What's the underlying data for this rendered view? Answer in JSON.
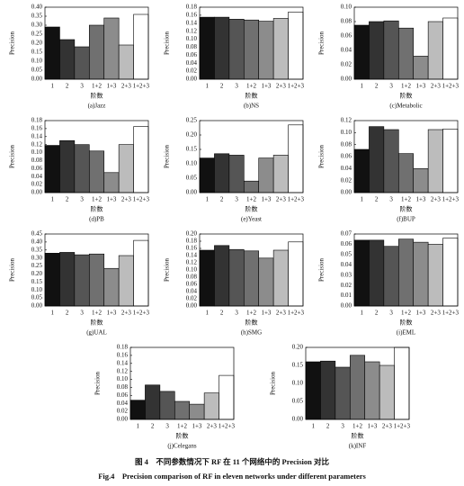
{
  "chart_data": [
    {
      "type": "bar",
      "subtitle": "(a)Jazz",
      "xlabel": "阶数",
      "ylabel": "Precision",
      "categories": [
        "1",
        "2",
        "3",
        "1+2",
        "1+3",
        "2+3",
        "1+2+3"
      ],
      "values": [
        0.29,
        0.22,
        0.18,
        0.3,
        0.34,
        0.19,
        0.36
      ],
      "colors": [
        "#111111",
        "#333333",
        "#555555",
        "#707070",
        "#8c8c8c",
        "#bcbcbc",
        "#ffffff"
      ],
      "ylim": [
        0,
        0.4
      ],
      "yticks": [
        {
          "value": 0,
          "label": "0.00"
        },
        0.05,
        {
          "value": 0.1,
          "label": "0.10"
        },
        0.15,
        {
          "value": 0.2,
          "label": "0.20"
        },
        0.25,
        {
          "value": 0.3,
          "label": "0.30"
        },
        0.35,
        {
          "value": 0.4,
          "label": "0.40"
        }
      ]
    },
    {
      "type": "bar",
      "subtitle": "(b)NS",
      "xlabel": "阶数",
      "ylabel": "Precision",
      "categories": [
        "1",
        "2",
        "3",
        "1+2",
        "1+3",
        "2+3",
        "1+2+3"
      ],
      "values": [
        0.155,
        0.155,
        0.15,
        0.148,
        0.145,
        0.152,
        0.168
      ],
      "colors": [
        "#111111",
        "#333333",
        "#555555",
        "#707070",
        "#8c8c8c",
        "#bcbcbc",
        "#ffffff"
      ],
      "ylim": [
        0,
        0.18
      ],
      "yticks": [
        {
          "value": 0,
          "label": "0.00"
        },
        0.02,
        0.04,
        0.06,
        0.08,
        {
          "value": 0.1,
          "label": "0.10"
        },
        0.12,
        0.14,
        0.16,
        0.18
      ]
    },
    {
      "type": "bar",
      "subtitle": "(c)Metabolic",
      "xlabel": "阶数",
      "ylabel": "Precision",
      "categories": [
        "1",
        "2",
        "3",
        "1+2",
        "1+3",
        "2+3",
        "1+2+3"
      ],
      "values": [
        0.075,
        0.08,
        0.081,
        0.071,
        0.032,
        0.08,
        0.085
      ],
      "colors": [
        "#111111",
        "#333333",
        "#555555",
        "#707070",
        "#8c8c8c",
        "#bcbcbc",
        "#ffffff"
      ],
      "ylim": [
        0,
        0.1
      ],
      "yticks": [
        {
          "value": 0,
          "label": "0.00"
        },
        0.02,
        0.04,
        0.06,
        0.08,
        {
          "value": 0.1,
          "label": "0.10"
        }
      ]
    },
    {
      "type": "bar",
      "subtitle": "(d)PB",
      "xlabel": "阶数",
      "ylabel": "Precision",
      "categories": [
        "1",
        "2",
        "3",
        "1+2",
        "1+3",
        "2+3",
        "1+2+3"
      ],
      "values": [
        0.118,
        0.13,
        0.12,
        0.104,
        0.05,
        0.12,
        0.165
      ],
      "colors": [
        "#111111",
        "#333333",
        "#555555",
        "#707070",
        "#8c8c8c",
        "#bcbcbc",
        "#ffffff"
      ],
      "ylim": [
        0,
        0.18
      ],
      "yticks": [
        {
          "value": 0,
          "label": "0.00"
        },
        0.02,
        0.04,
        0.06,
        0.08,
        {
          "value": 0.1,
          "label": "0.10"
        },
        0.12,
        0.14,
        0.16,
        0.18
      ]
    },
    {
      "type": "bar",
      "subtitle": "(e)Yeast",
      "xlabel": "阶数",
      "ylabel": "Precision",
      "categories": [
        "1",
        "2",
        "3",
        "1+2",
        "1+3",
        "2+3",
        "1+2+3"
      ],
      "values": [
        0.12,
        0.135,
        0.13,
        0.04,
        0.12,
        0.13,
        0.235
      ],
      "colors": [
        "#111111",
        "#333333",
        "#555555",
        "#707070",
        "#8c8c8c",
        "#bcbcbc",
        "#ffffff"
      ],
      "ylim": [
        0,
        0.25
      ],
      "yticks": [
        {
          "value": 0,
          "label": "0.00"
        },
        0.05,
        {
          "value": 0.1,
          "label": "0.10"
        },
        0.15,
        {
          "value": 0.2,
          "label": "0.20"
        },
        0.25
      ]
    },
    {
      "type": "bar",
      "subtitle": "(f)BUP",
      "xlabel": "阶数",
      "ylabel": "Precision",
      "categories": [
        "1",
        "2",
        "3",
        "1+2",
        "1+3",
        "2+3",
        "1+2+3"
      ],
      "values": [
        0.072,
        0.11,
        0.105,
        0.065,
        0.04,
        0.105,
        0.106
      ],
      "colors": [
        "#111111",
        "#333333",
        "#555555",
        "#707070",
        "#8c8c8c",
        "#bcbcbc",
        "#ffffff"
      ],
      "ylim": [
        0,
        0.12
      ],
      "yticks": [
        {
          "value": 0,
          "label": "0.00"
        },
        0.02,
        0.04,
        0.06,
        0.08,
        {
          "value": 0.1,
          "label": "0.10"
        },
        0.12
      ]
    },
    {
      "type": "bar",
      "subtitle": "(g)UAL",
      "xlabel": "阶数",
      "ylabel": "Precision",
      "categories": [
        "1",
        "2",
        "3",
        "1+2",
        "1+3",
        "2+3",
        "1+2+3"
      ],
      "values": [
        0.33,
        0.335,
        0.32,
        0.325,
        0.235,
        0.315,
        0.41
      ],
      "colors": [
        "#111111",
        "#333333",
        "#555555",
        "#707070",
        "#8c8c8c",
        "#bcbcbc",
        "#ffffff"
      ],
      "ylim": [
        0,
        0.45
      ],
      "yticks": [
        {
          "value": 0,
          "label": "0.00"
        },
        0.05,
        {
          "value": 0.1,
          "label": "0.10"
        },
        0.15,
        {
          "value": 0.2,
          "label": "0.20"
        },
        0.25,
        {
          "value": 0.3,
          "label": "0.30"
        },
        0.35,
        {
          "value": 0.4,
          "label": "0.40"
        },
        0.45
      ]
    },
    {
      "type": "bar",
      "subtitle": "(h)SMG",
      "xlabel": "阶数",
      "ylabel": "Precision",
      "categories": [
        "1",
        "2",
        "3",
        "1+2",
        "1+3",
        "2+3",
        "1+2+3"
      ],
      "values": [
        0.155,
        0.168,
        0.157,
        0.153,
        0.133,
        0.155,
        0.178
      ],
      "colors": [
        "#111111",
        "#333333",
        "#555555",
        "#707070",
        "#8c8c8c",
        "#bcbcbc",
        "#ffffff"
      ],
      "ylim": [
        0,
        0.2
      ],
      "yticks": [
        {
          "value": 0,
          "label": "0.00"
        },
        0.02,
        0.04,
        0.06,
        0.08,
        {
          "value": 0.1,
          "label": "0.10"
        },
        0.12,
        0.14,
        0.16,
        0.18,
        {
          "value": 0.2,
          "label": "0.20"
        }
      ]
    },
    {
      "type": "bar",
      "subtitle": "(i)EML",
      "xlabel": "阶数",
      "ylabel": "Precision",
      "categories": [
        "1",
        "2",
        "3",
        "1+2",
        "1+3",
        "2+3",
        "1+2+3"
      ],
      "values": [
        0.064,
        0.064,
        0.058,
        0.065,
        0.062,
        0.06,
        0.066
      ],
      "colors": [
        "#111111",
        "#333333",
        "#555555",
        "#707070",
        "#8c8c8c",
        "#bcbcbc",
        "#ffffff"
      ],
      "ylim": [
        0,
        0.07
      ],
      "yticks": [
        {
          "value": 0,
          "label": "0.00"
        },
        0.01,
        0.02,
        0.03,
        0.04,
        0.05,
        0.06,
        0.07
      ]
    },
    {
      "type": "bar",
      "subtitle": "(j)Celegans",
      "xlabel": "阶数",
      "ylabel": "Precision",
      "categories": [
        "1",
        "2",
        "3",
        "1+2",
        "1+3",
        "2+3",
        "1+2+3"
      ],
      "values": [
        0.048,
        0.086,
        0.07,
        0.045,
        0.038,
        0.066,
        0.11
      ],
      "colors": [
        "#111111",
        "#333333",
        "#555555",
        "#707070",
        "#8c8c8c",
        "#bcbcbc",
        "#ffffff"
      ],
      "ylim": [
        0,
        0.18
      ],
      "yticks": [
        {
          "value": 0,
          "label": "0.00"
        },
        0.02,
        0.04,
        0.06,
        0.08,
        {
          "value": 0.1,
          "label": "0.10"
        },
        0.12,
        0.14,
        0.16,
        0.18
      ]
    },
    {
      "type": "bar",
      "subtitle": "(k)INF",
      "xlabel": "阶数",
      "ylabel": "Precision",
      "categories": [
        "1",
        "2",
        "3",
        "1+2",
        "1+3",
        "2+3",
        "1+2+3"
      ],
      "values": [
        0.16,
        0.162,
        0.145,
        0.178,
        0.16,
        0.15,
        0.2
      ],
      "colors": [
        "#111111",
        "#333333",
        "#555555",
        "#707070",
        "#8c8c8c",
        "#bcbcbc",
        "#ffffff"
      ],
      "ylim": [
        0,
        0.2
      ],
      "yticks": [
        {
          "value": 0,
          "label": "0.00"
        },
        0.05,
        {
          "value": 0.1,
          "label": "0.10"
        },
        0.15,
        {
          "value": 0.2,
          "label": "0.20"
        }
      ]
    }
  ],
  "caption": {
    "zh": "图 4　不同参数情况下 RF 在 11 个网络中的 Precision 对比",
    "en": "Fig.4　Precision comparison of RF in eleven networks under different parameters"
  }
}
